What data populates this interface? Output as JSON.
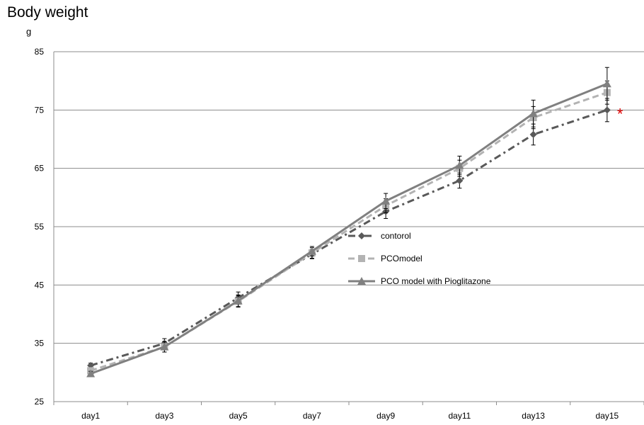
{
  "chart_data": {
    "type": "line",
    "title": "Body weight",
    "ylabel": "g",
    "xlabel": "",
    "categories": [
      "day1",
      "day3",
      "day5",
      "day7",
      "day9",
      "day11",
      "day13",
      "day15"
    ],
    "ylim": [
      25,
      85
    ],
    "yticks": [
      25,
      35,
      45,
      55,
      65,
      75,
      85
    ],
    "grid": "horizontal",
    "legend_position": "center",
    "series": [
      {
        "name": "contorol",
        "values": [
          31.2,
          35.0,
          42.8,
          50.3,
          57.6,
          62.9,
          70.8,
          75.0
        ],
        "errors": [
          0.4,
          0.8,
          1.0,
          0.8,
          1.2,
          1.3,
          1.8,
          2.0
        ],
        "color": "#595959",
        "marker": "diamond",
        "dash": "dashdot"
      },
      {
        "name": "PCOmodel",
        "values": [
          30.3,
          34.4,
          42.2,
          50.5,
          58.6,
          65.0,
          73.7,
          78.0
        ],
        "errors": [
          0.5,
          0.9,
          1.0,
          0.9,
          1.2,
          1.4,
          1.9,
          2.0
        ],
        "color": "#b3b3b3",
        "marker": "square",
        "dash": "dash"
      },
      {
        "name": "PCO model with Pioglitazone",
        "values": [
          29.8,
          34.4,
          42.3,
          50.8,
          59.4,
          65.5,
          74.4,
          79.5
        ],
        "errors": [
          0.4,
          0.9,
          1.0,
          0.8,
          1.3,
          1.6,
          2.3,
          2.8
        ],
        "color": "#808080",
        "marker": "triangle",
        "dash": "solid"
      }
    ],
    "annotation": {
      "text": "*",
      "color": "#e00000",
      "category": "day15"
    }
  }
}
